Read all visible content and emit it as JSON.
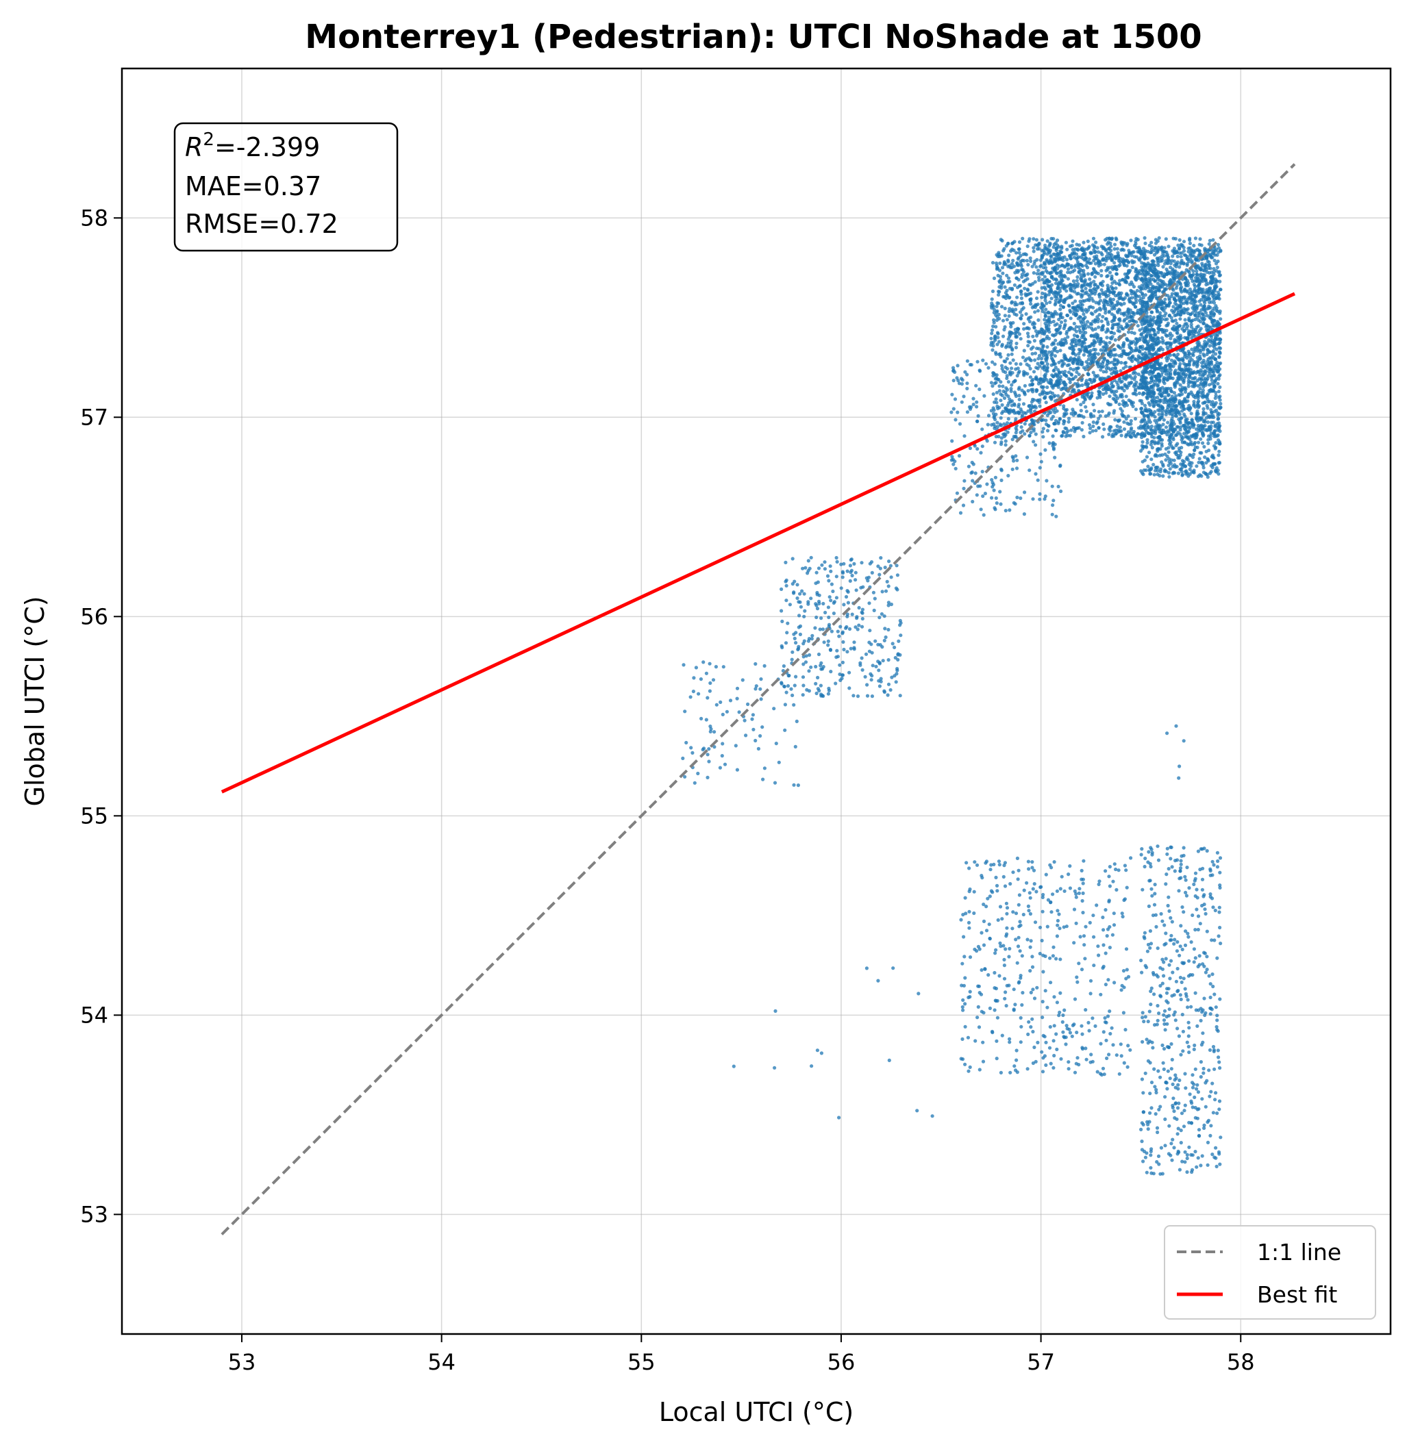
{
  "chart_data": {
    "type": "scatter",
    "title": "Monterrey1 (Pedestrian): UTCI NoShade at 1500",
    "xlabel": "Local UTCI (°C)",
    "ylabel": "Global UTCI (°C)",
    "xlim": [
      52.4,
      58.75
    ],
    "ylim": [
      52.4,
      58.75
    ],
    "xticks": [
      "53",
      "54",
      "55",
      "56",
      "57",
      "58"
    ],
    "yticks": [
      "53",
      "54",
      "55",
      "56",
      "57",
      "58"
    ],
    "grid": true,
    "legend_position": "bottom-right",
    "stats": {
      "r2": "=-2.399",
      "mae": "MAE=0.37",
      "rmse": "RMSE=0.72"
    },
    "series": [
      {
        "name": "1:1 line",
        "kind": "line",
        "style": "dashed",
        "color": "#808080",
        "x": [
          52.9,
          58.27
        ],
        "y": [
          52.9,
          58.27
        ]
      },
      {
        "name": "Best fit",
        "kind": "line",
        "style": "solid",
        "color": "#ff0000",
        "x": [
          52.9,
          58.27
        ],
        "y": [
          55.12,
          57.62
        ]
      },
      {
        "name": "",
        "kind": "scatter",
        "color": "#1f77b4",
        "clusters": [
          {
            "x": [
              56.75,
              57.9
            ],
            "y": [
              56.9,
              57.9
            ],
            "n": 2400
          },
          {
            "x": [
              57.0,
              57.6
            ],
            "y": [
              57.1,
              57.85
            ],
            "n": 900
          },
          {
            "x": [
              57.5,
              57.9
            ],
            "y": [
              56.7,
              57.85
            ],
            "n": 1400
          },
          {
            "x": [
              56.55,
              57.1
            ],
            "y": [
              56.5,
              57.3
            ],
            "n": 250
          },
          {
            "x": [
              55.7,
              56.3
            ],
            "y": [
              55.6,
              56.3
            ],
            "n": 320
          },
          {
            "x": [
              55.2,
              55.8
            ],
            "y": [
              55.15,
              55.8
            ],
            "n": 90
          },
          {
            "x": [
              56.6,
              57.45
            ],
            "y": [
              53.7,
              54.8
            ],
            "n": 420
          },
          {
            "x": [
              57.5,
              57.9
            ],
            "y": [
              53.2,
              54.85
            ],
            "n": 480
          },
          {
            "x": [
              55.45,
              56.5
            ],
            "y": [
              53.4,
              54.25
            ],
            "n": 14
          },
          {
            "x": [
              57.62,
              57.72
            ],
            "y": [
              55.1,
              55.48
            ],
            "n": 5
          }
        ]
      }
    ]
  }
}
